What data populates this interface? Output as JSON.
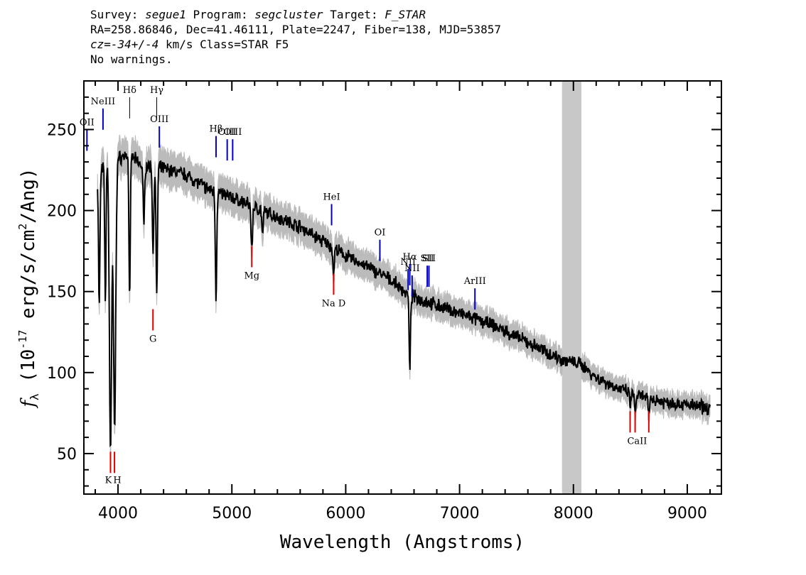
{
  "header": {
    "survey_label": "Survey:",
    "survey": "segue1",
    "program_label": "Program:",
    "program": "segcluster",
    "target_label": "Target:",
    "target": "F_STAR",
    "line2": "RA=258.86846, Dec=41.46111, Plate=2247, Fiber=138, MJD=53857",
    "cz_label": "cz=",
    "cz": "-34+/-4",
    "line3_rest": " km/s Class=STAR F5",
    "line4": "No warnings."
  },
  "colors": {
    "emission_line": "#0000cc",
    "absorption_line": "#dd0000",
    "flux": "#000000",
    "error_band": "#bbbbbb",
    "masked_region": "#c8c8c8"
  },
  "chart_data": {
    "type": "line",
    "xlabel": "Wavelength (Angstroms)",
    "ylabel": "f_λ (10^-17 erg/s/cm^2/Ang)",
    "xlim": [
      3700,
      9300
    ],
    "ylim": [
      25,
      280
    ],
    "x_ticks": [
      4000,
      5000,
      6000,
      7000,
      8000,
      9000
    ],
    "y_ticks": [
      50,
      100,
      150,
      200,
      250
    ],
    "masked_region": [
      7900,
      8070
    ],
    "continuum": [
      [
        3820,
        218
      ],
      [
        3900,
        232
      ],
      [
        4000,
        232
      ],
      [
        4100,
        235
      ],
      [
        4200,
        228
      ],
      [
        4400,
        226
      ],
      [
        4600,
        222
      ],
      [
        4800,
        213
      ],
      [
        5000,
        208
      ],
      [
        5200,
        202
      ],
      [
        5400,
        196
      ],
      [
        5600,
        190
      ],
      [
        5800,
        181
      ],
      [
        6000,
        172
      ],
      [
        6200,
        165
      ],
      [
        6400,
        157
      ],
      [
        6550,
        148
      ],
      [
        6700,
        144
      ],
      [
        6900,
        139
      ],
      [
        7100,
        134
      ],
      [
        7300,
        129
      ],
      [
        7500,
        122
      ],
      [
        7700,
        115
      ],
      [
        7900,
        108
      ],
      [
        8070,
        105
      ],
      [
        8200,
        97
      ],
      [
        8400,
        90
      ],
      [
        8600,
        85
      ],
      [
        8800,
        82
      ],
      [
        9000,
        80
      ],
      [
        9200,
        78
      ]
    ],
    "absorption_dips": [
      [
        3835,
        140
      ],
      [
        3889,
        146
      ],
      [
        3934,
        53
      ],
      [
        3970,
        65
      ],
      [
        4102,
        147
      ],
      [
        4227,
        190
      ],
      [
        4308,
        173
      ],
      [
        4340,
        145
      ],
      [
        4861,
        145
      ],
      [
        5175,
        175
      ],
      [
        5270,
        184
      ],
      [
        5893,
        160
      ],
      [
        6563,
        101
      ],
      [
        8498,
        80
      ],
      [
        8542,
        74
      ],
      [
        8662,
        74
      ]
    ],
    "emission_lines": [
      {
        "label": "OII",
        "x": 3727,
        "y": 250
      },
      {
        "label": "NeIII",
        "x": 3868,
        "y": 263
      },
      {
        "label": "OIII",
        "x": 4363,
        "y": 252
      },
      {
        "label": "Hβ",
        "x": 4861,
        "y": 246
      },
      {
        "label": "OIII",
        "x": 4959,
        "y": 244
      },
      {
        "label": "OIII",
        "x": 5007,
        "y": 244
      },
      {
        "label": "HeI",
        "x": 5876,
        "y": 204
      },
      {
        "label": "OI",
        "x": 6300,
        "y": 182
      },
      {
        "label": "NII",
        "x": 6548,
        "y": 164
      },
      {
        "label": "Hα",
        "x": 6563,
        "y": 167
      },
      {
        "label": "NII",
        "x": 6583,
        "y": 160
      },
      {
        "label": "SII",
        "x": 6716,
        "y": 166
      },
      {
        "label": "SII",
        "x": 6731,
        "y": 166
      },
      {
        "label": "ArIII",
        "x": 7135,
        "y": 152
      }
    ],
    "thin_lines": [
      {
        "label": "Hδ",
        "x": 4102,
        "y": 270
      },
      {
        "label": "Hγ",
        "x": 4340,
        "y": 270
      }
    ],
    "absorption_lines": [
      {
        "label": "K",
        "x": 3934,
        "y": 38
      },
      {
        "label": "H",
        "x": 3969,
        "y": 38
      },
      {
        "label": "G",
        "x": 4307,
        "y": 126
      },
      {
        "label": "Mg",
        "x": 5175,
        "y": 165
      },
      {
        "label": "Na D",
        "x": 5894,
        "y": 148
      },
      {
        "label": "CaII",
        "x": 8498,
        "y": 63
      },
      {
        "label": "CaII",
        "x": 8542,
        "y": 63
      },
      {
        "label": "CaII",
        "x": 8662,
        "y": 63
      }
    ]
  }
}
